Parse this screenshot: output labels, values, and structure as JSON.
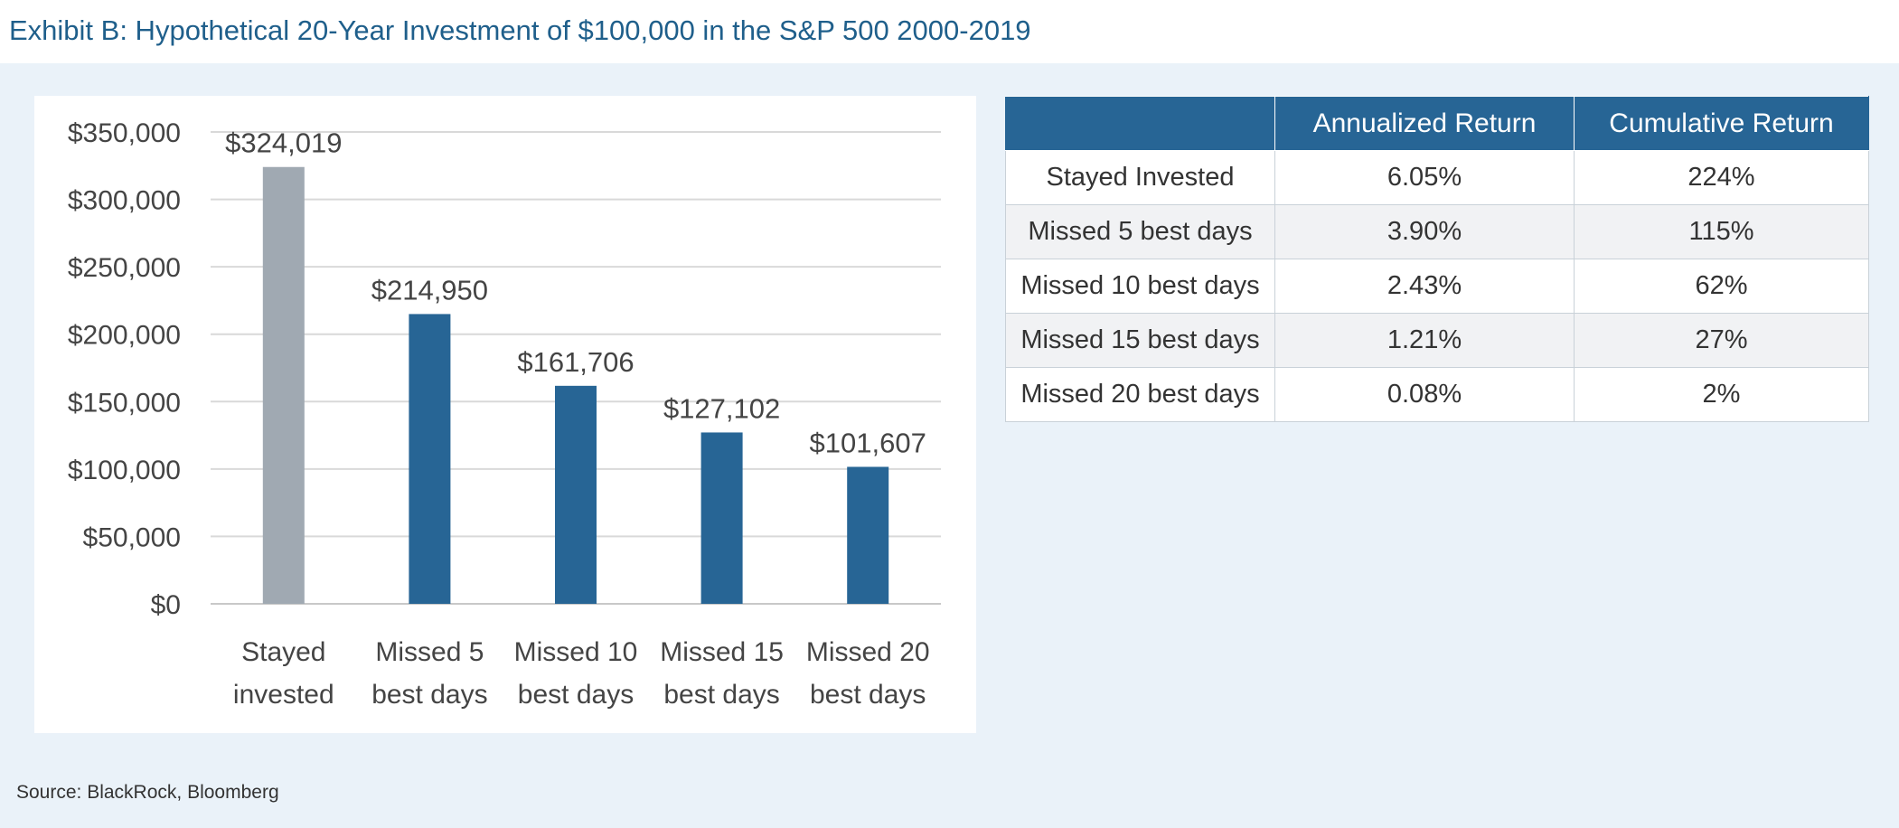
{
  "title": "Exhibit B: Hypothetical 20-Year Investment of $100,000 in the S&P 500 2000-2019",
  "source": "Source: BlackRock, Bloomberg",
  "colors": {
    "title": "#1f5f8b",
    "bar_primary": "#276595",
    "bar_highlight": "#a0a9b2",
    "panel": "#eaf2f9",
    "header": "#276595"
  },
  "chart_data": {
    "type": "bar",
    "title": "",
    "xlabel": "",
    "ylabel": "",
    "ylim": [
      0,
      350000
    ],
    "yticks": [
      0,
      50000,
      100000,
      150000,
      200000,
      250000,
      300000,
      350000
    ],
    "ytick_labels": [
      "$0",
      "$50,000",
      "$100,000",
      "$150,000",
      "$200,000",
      "$250,000",
      "$300,000",
      "$350,000"
    ],
    "grid": true,
    "categories": [
      [
        "Stayed",
        "invested"
      ],
      [
        "Missed 5",
        "best days"
      ],
      [
        "Missed 10",
        "best days"
      ],
      [
        "Missed 15",
        "best days"
      ],
      [
        "Missed 20",
        "best days"
      ]
    ],
    "values": [
      324019,
      214950,
      161706,
      127102,
      101607
    ],
    "value_labels": [
      "$324,019",
      "$214,950",
      "$161,706",
      "$127,102",
      "$101,607"
    ],
    "bar_colors": [
      "#a0a9b2",
      "#276595",
      "#276595",
      "#276595",
      "#276595"
    ]
  },
  "table": {
    "headers": [
      "",
      "Annualized Return",
      "Cumulative Return"
    ],
    "rows": [
      [
        "Stayed Invested",
        "6.05%",
        "224%"
      ],
      [
        "Missed 5 best days",
        "3.90%",
        "115%"
      ],
      [
        "Missed 10 best days",
        "2.43%",
        "62%"
      ],
      [
        "Missed 15 best days",
        "1.21%",
        "27%"
      ],
      [
        "Missed 20 best days",
        "0.08%",
        "2%"
      ]
    ]
  }
}
